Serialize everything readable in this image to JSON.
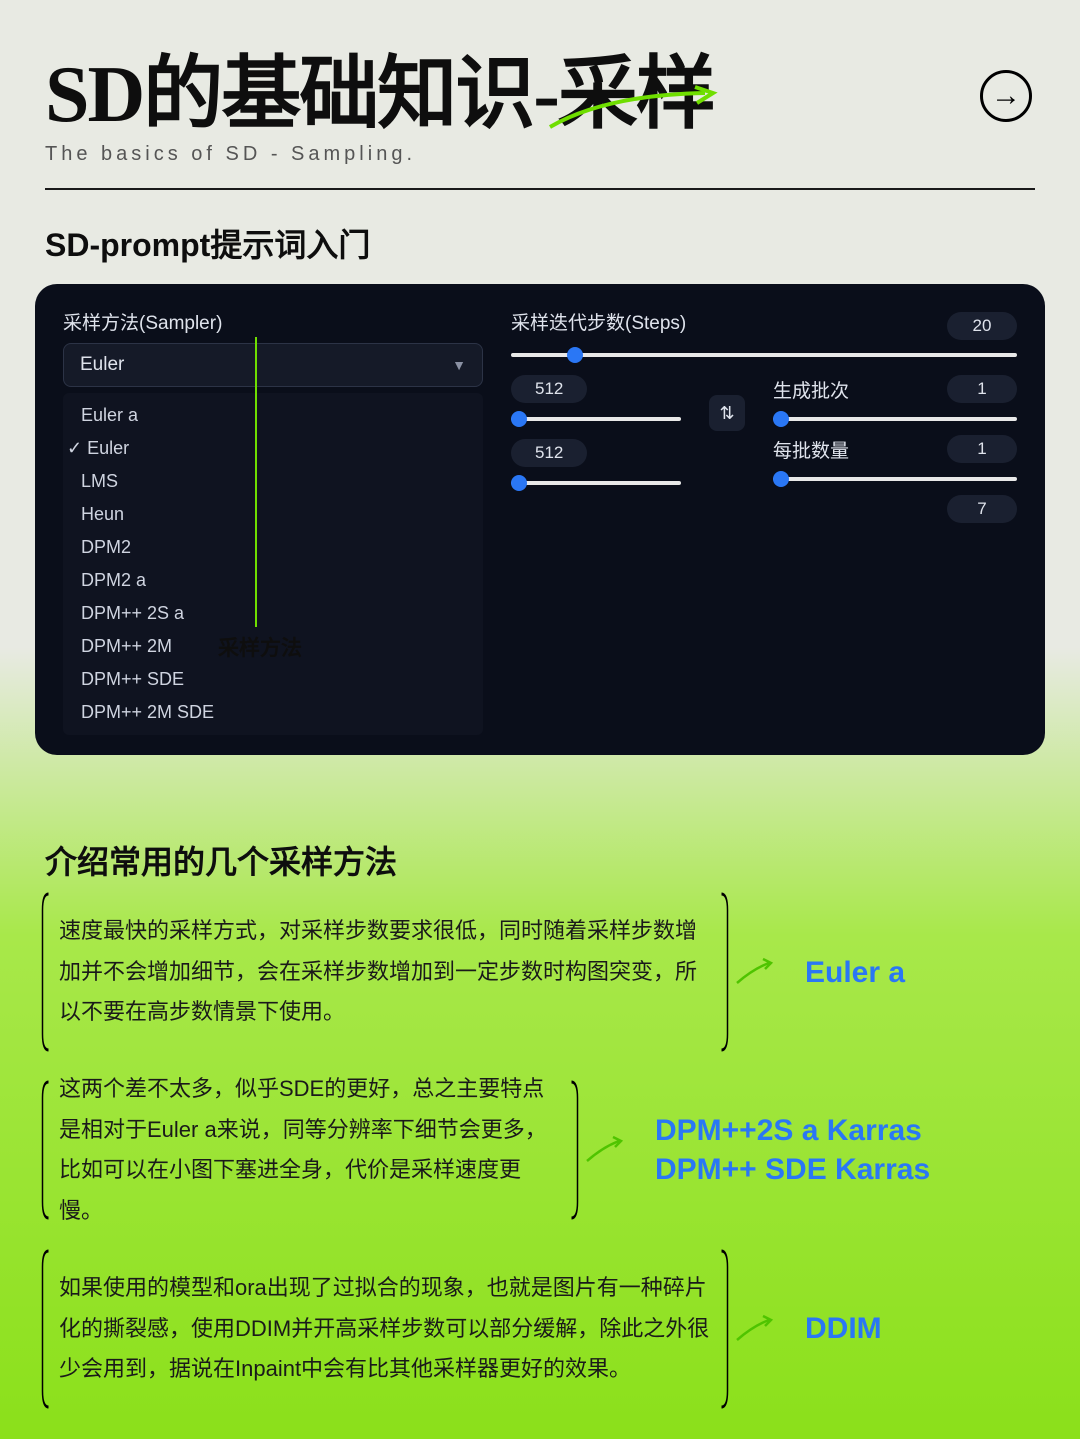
{
  "header": {
    "title_main": "SD的基础知识-采样",
    "title_sub": "The basics of SD - Sampling.",
    "accent_color": "#6fde00"
  },
  "section1_title": "SD-prompt提示词入门",
  "panel": {
    "bg_color": "#0a0e1a",
    "sampler_label": "采样方法(Sampler)",
    "sampler_selected": "Euler",
    "dropdown_items": [
      "Euler a",
      "Euler",
      "LMS",
      "Heun",
      "DPM2",
      "DPM2 a",
      "DPM++ 2S a",
      "DPM++ 2M",
      "DPM++ SDE",
      "DPM++ 2M SDE"
    ],
    "dropdown_checked_index": 1,
    "steps_label": "采样迭代步数(Steps)",
    "steps_value": "20",
    "steps_slider_pos_pct": 11,
    "dim1_value": "512",
    "dim2_value": "512",
    "batch_count_label": "生成批次",
    "batch_count_value": "1",
    "batch_size_label": "每批数量",
    "batch_size_value": "1",
    "cfg_value": "7"
  },
  "callout_label": "采样方法",
  "section2_title": "介绍常用的几个采样方法",
  "methods": [
    {
      "name": "Euler a",
      "desc": "速度最快的采样方式，对采样步数要求很低，同时随着采样步数增加并不会增加细节，会在采样步数增加到一定步数时构图突变，所以不要在高步数情景下使用。"
    },
    {
      "name": "DPM++2S a Karras\nDPM++ SDE Karras",
      "desc": "这两个差不太多，似乎SDE的更好，总之主要特点是相对于Euler a来说，同等分辨率下细节会更多，比如可以在小图下塞进全身，代价是采样速度更慢。"
    },
    {
      "name": "DDIM",
      "desc": "如果使用的模型和ora出现了过拟合的现象，也就是图片有一种碎片化的撕裂感，使用DDIM并开高采样步数可以部分缓解，除此之外很少会用到，据说在Inpaint中会有比其他采样器更好的效果。"
    }
  ],
  "colors": {
    "method_name": "#2a77f5",
    "slider_thumb": "#2a77f5"
  }
}
